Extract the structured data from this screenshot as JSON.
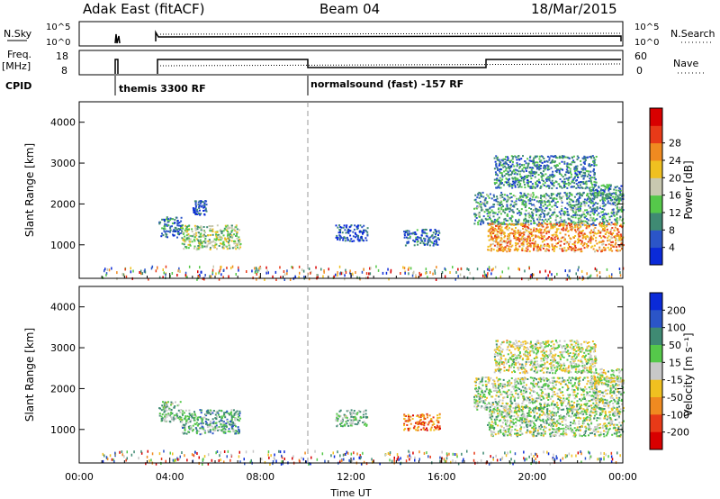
{
  "header": {
    "station": "Adak East (fitACF)",
    "beam": "Beam 04",
    "date": "18/Mar/2015"
  },
  "panels": {
    "nsky": {
      "left_label": "N.Sky",
      "left_ticks": [
        "10^5",
        "10^0"
      ],
      "right_ticks": [
        "10^5",
        "10^0"
      ],
      "right_label": "N.Search"
    },
    "freq": {
      "left_label_1": "Freq.",
      "left_label_2": "[MHz]",
      "left_ticks": [
        "18",
        "8"
      ],
      "right_ticks": [
        "60",
        "0"
      ],
      "right_label": "Nave"
    },
    "cpid": {
      "label": "CPID",
      "programs": [
        {
          "name": "themis 3300 RF",
          "start_h": 1.35
        },
        {
          "name": "normalsound (fast) -157 RF",
          "start_h": 9.95
        }
      ]
    }
  },
  "chart_data": [
    {
      "type": "heatmap",
      "name": "power",
      "ylabel": "Slant Range [km]",
      "xlabel": "Time UT",
      "xlim": [
        0,
        24
      ],
      "ylim": [
        180,
        4500
      ],
      "yticks": [
        1000,
        2000,
        3000,
        4000
      ],
      "xticks": [
        "00:00",
        "04:00",
        "08:00",
        "12:00",
        "16:00",
        "20:00",
        "00:00"
      ],
      "colorbar": {
        "label": "Power [dB]",
        "ticks": [
          "4",
          "8",
          "12",
          "16",
          "20",
          "24",
          "28"
        ],
        "colors": [
          "#0a2ad8",
          "#2b55c8",
          "#3f8a73",
          "#55c84a",
          "#c8c8b0",
          "#f0c020",
          "#f08a20",
          "#e83a18",
          "#d80000"
        ]
      },
      "regions": [
        {
          "t": [
            3.5,
            4.5
          ],
          "r": [
            1200,
            1700
          ],
          "level": 0.2
        },
        {
          "t": [
            4.5,
            7.1
          ],
          "r": [
            900,
            1500
          ],
          "level": 0.45
        },
        {
          "t": [
            5.0,
            5.6
          ],
          "r": [
            1750,
            2100
          ],
          "level": 0.15
        },
        {
          "t": [
            11.3,
            12.7
          ],
          "r": [
            1100,
            1500
          ],
          "level": 0.15
        },
        {
          "t": [
            14.3,
            15.9
          ],
          "r": [
            1000,
            1400
          ],
          "level": 0.2
        },
        {
          "t": [
            17.4,
            24.0
          ],
          "r": [
            1500,
            2300
          ],
          "level": 0.3
        },
        {
          "t": [
            18.0,
            24.0
          ],
          "r": [
            850,
            1550
          ],
          "level": 0.7
        },
        {
          "t": [
            18.3,
            22.8
          ],
          "r": [
            2400,
            3200
          ],
          "level": 0.25
        },
        {
          "t": [
            22.5,
            24.0
          ],
          "r": [
            2100,
            2500
          ],
          "level": 0.25
        }
      ]
    },
    {
      "type": "heatmap",
      "name": "velocity",
      "ylabel": "Slant Range [km]",
      "xlabel": "Time UT",
      "xlim": [
        0,
        24
      ],
      "ylim": [
        180,
        4500
      ],
      "yticks": [
        1000,
        2000,
        3000,
        4000
      ],
      "xticks": [
        "00:00",
        "04:00",
        "08:00",
        "12:00",
        "16:00",
        "20:00",
        "00:00"
      ],
      "colorbar": {
        "label": "Velocity [m s⁻¹]",
        "ticks": [
          "200",
          "100",
          "50",
          "15",
          "-15",
          "-50",
          "-100",
          "-200"
        ],
        "colors": [
          "#0a2ad8",
          "#2b55c8",
          "#3f8a73",
          "#55c84a",
          "#c8c8c8",
          "#f0c020",
          "#f08a20",
          "#e83a18",
          "#d80000"
        ]
      },
      "regions": [
        {
          "t": [
            3.5,
            4.5
          ],
          "r": [
            1200,
            1700
          ],
          "level": 0.4
        },
        {
          "t": [
            4.5,
            7.1
          ],
          "r": [
            900,
            1500
          ],
          "level": 0.35
        },
        {
          "t": [
            11.3,
            12.7
          ],
          "r": [
            1100,
            1500
          ],
          "level": 0.4
        },
        {
          "t": [
            14.3,
            15.9
          ],
          "r": [
            1000,
            1400
          ],
          "level": 0.75
        },
        {
          "t": [
            17.4,
            24.0
          ],
          "r": [
            1500,
            2300
          ],
          "level": 0.45
        },
        {
          "t": [
            18.0,
            24.0
          ],
          "r": [
            850,
            1550
          ],
          "level": 0.45
        },
        {
          "t": [
            18.3,
            22.8
          ],
          "r": [
            2400,
            3200
          ],
          "level": 0.5
        },
        {
          "t": [
            22.5,
            24.0
          ],
          "r": [
            2100,
            2500
          ],
          "level": 0.5
        }
      ]
    }
  ]
}
